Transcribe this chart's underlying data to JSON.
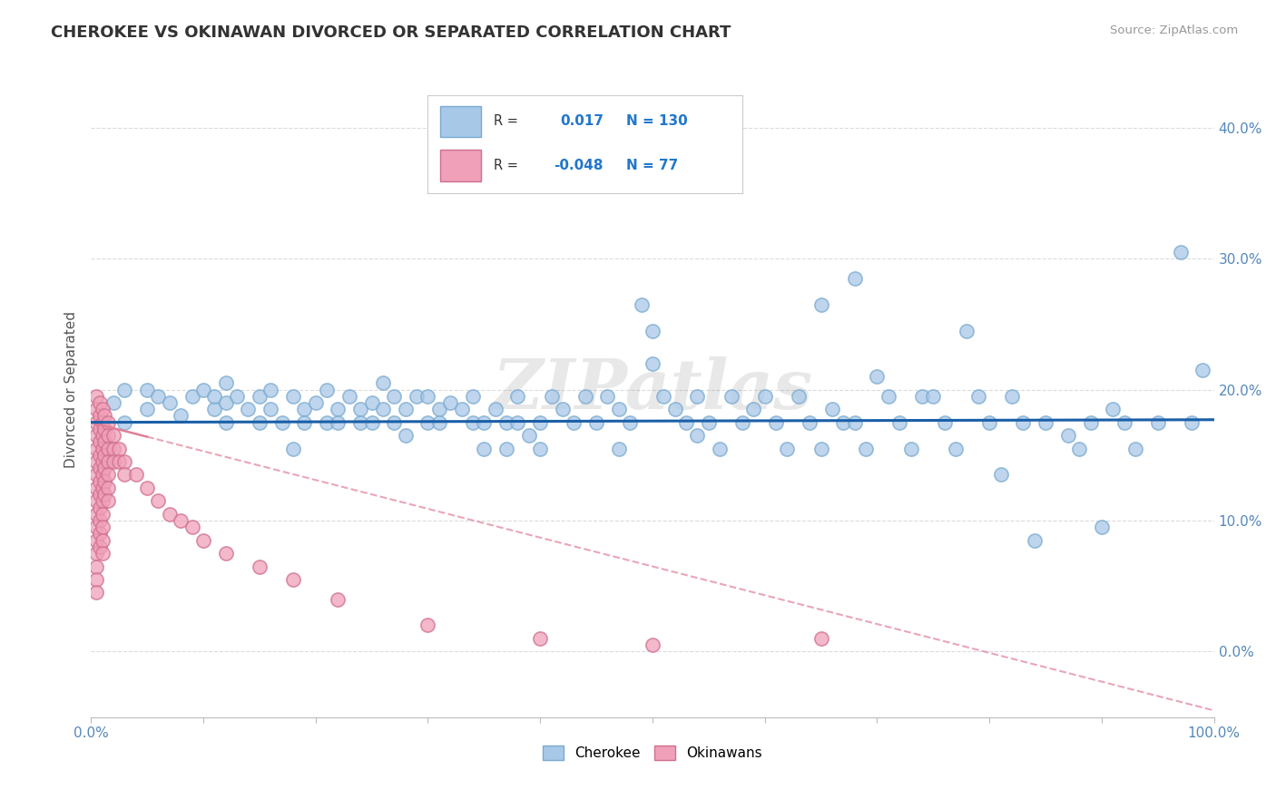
{
  "title": "CHEROKEE VS OKINAWAN DIVORCED OR SEPARATED CORRELATION CHART",
  "source": "Source: ZipAtlas.com",
  "ylabel": "Divorced or Separated",
  "xlim": [
    0.0,
    1.0
  ],
  "ylim": [
    -0.05,
    0.45
  ],
  "xtick_positions": [
    0.0,
    0.1,
    0.2,
    0.3,
    0.4,
    0.5,
    0.6,
    0.7,
    0.8,
    0.9,
    1.0
  ],
  "xtick_labels_shown": [
    "0.0%",
    "",
    "",
    "",
    "",
    "",
    "",
    "",
    "",
    "",
    "100.0%"
  ],
  "ytick_values": [
    0.0,
    0.1,
    0.2,
    0.3,
    0.4
  ],
  "ytick_labels": [
    "0.0%",
    "10.0%",
    "20.0%",
    "30.0%",
    "40.0%"
  ],
  "cherokee_color": "#a8c8e8",
  "cherokee_edge_color": "#7aaad0",
  "okinawan_color": "#f0a0b8",
  "okinawan_edge_color": "#d07090",
  "cherokee_R": 0.017,
  "cherokee_N": 130,
  "okinawan_R": -0.048,
  "okinawan_N": 77,
  "cherokee_line_color": "#1a5fa8",
  "okinawan_line_color": "#e08098",
  "watermark": "ZIPatlas",
  "background_color": "#ffffff",
  "grid_color": "#cccccc",
  "title_color": "#333333",
  "axis_label_color": "#5588bb",
  "ylabel_color": "#555555",
  "legend_R_label_color": "#333333",
  "legend_value_color": "#2277cc",
  "cherokee_line_y_intercept": 0.175,
  "cherokee_line_slope": 0.002,
  "okinawan_line_y_intercept": 0.175,
  "okinawan_line_slope": -0.22,
  "cherokee_points": [
    [
      0.02,
      0.19
    ],
    [
      0.03,
      0.2
    ],
    [
      0.03,
      0.175
    ],
    [
      0.05,
      0.2
    ],
    [
      0.05,
      0.185
    ],
    [
      0.06,
      0.195
    ],
    [
      0.07,
      0.19
    ],
    [
      0.08,
      0.18
    ],
    [
      0.09,
      0.195
    ],
    [
      0.1,
      0.2
    ],
    [
      0.11,
      0.185
    ],
    [
      0.11,
      0.195
    ],
    [
      0.12,
      0.19
    ],
    [
      0.12,
      0.175
    ],
    [
      0.12,
      0.205
    ],
    [
      0.13,
      0.195
    ],
    [
      0.14,
      0.185
    ],
    [
      0.15,
      0.195
    ],
    [
      0.15,
      0.175
    ],
    [
      0.16,
      0.2
    ],
    [
      0.16,
      0.185
    ],
    [
      0.17,
      0.175
    ],
    [
      0.18,
      0.195
    ],
    [
      0.18,
      0.155
    ],
    [
      0.19,
      0.185
    ],
    [
      0.19,
      0.175
    ],
    [
      0.2,
      0.19
    ],
    [
      0.21,
      0.175
    ],
    [
      0.21,
      0.2
    ],
    [
      0.22,
      0.185
    ],
    [
      0.22,
      0.175
    ],
    [
      0.23,
      0.195
    ],
    [
      0.24,
      0.185
    ],
    [
      0.24,
      0.175
    ],
    [
      0.25,
      0.19
    ],
    [
      0.25,
      0.175
    ],
    [
      0.26,
      0.205
    ],
    [
      0.26,
      0.185
    ],
    [
      0.27,
      0.175
    ],
    [
      0.27,
      0.195
    ],
    [
      0.28,
      0.185
    ],
    [
      0.28,
      0.165
    ],
    [
      0.29,
      0.195
    ],
    [
      0.3,
      0.175
    ],
    [
      0.3,
      0.195
    ],
    [
      0.31,
      0.185
    ],
    [
      0.31,
      0.175
    ],
    [
      0.32,
      0.19
    ],
    [
      0.33,
      0.185
    ],
    [
      0.34,
      0.175
    ],
    [
      0.34,
      0.195
    ],
    [
      0.35,
      0.175
    ],
    [
      0.35,
      0.155
    ],
    [
      0.36,
      0.185
    ],
    [
      0.37,
      0.175
    ],
    [
      0.37,
      0.155
    ],
    [
      0.38,
      0.175
    ],
    [
      0.38,
      0.195
    ],
    [
      0.39,
      0.165
    ],
    [
      0.4,
      0.175
    ],
    [
      0.4,
      0.155
    ],
    [
      0.41,
      0.195
    ],
    [
      0.42,
      0.185
    ],
    [
      0.43,
      0.175
    ],
    [
      0.44,
      0.195
    ],
    [
      0.45,
      0.175
    ],
    [
      0.46,
      0.195
    ],
    [
      0.47,
      0.155
    ],
    [
      0.47,
      0.185
    ],
    [
      0.48,
      0.175
    ],
    [
      0.49,
      0.265
    ],
    [
      0.5,
      0.245
    ],
    [
      0.5,
      0.22
    ],
    [
      0.51,
      0.195
    ],
    [
      0.52,
      0.185
    ],
    [
      0.53,
      0.175
    ],
    [
      0.54,
      0.195
    ],
    [
      0.54,
      0.165
    ],
    [
      0.55,
      0.175
    ],
    [
      0.56,
      0.155
    ],
    [
      0.57,
      0.195
    ],
    [
      0.58,
      0.175
    ],
    [
      0.59,
      0.185
    ],
    [
      0.6,
      0.195
    ],
    [
      0.61,
      0.175
    ],
    [
      0.62,
      0.155
    ],
    [
      0.63,
      0.195
    ],
    [
      0.64,
      0.175
    ],
    [
      0.65,
      0.265
    ],
    [
      0.65,
      0.155
    ],
    [
      0.66,
      0.185
    ],
    [
      0.67,
      0.175
    ],
    [
      0.68,
      0.285
    ],
    [
      0.68,
      0.175
    ],
    [
      0.69,
      0.155
    ],
    [
      0.7,
      0.21
    ],
    [
      0.71,
      0.195
    ],
    [
      0.72,
      0.175
    ],
    [
      0.73,
      0.155
    ],
    [
      0.74,
      0.195
    ],
    [
      0.75,
      0.195
    ],
    [
      0.76,
      0.175
    ],
    [
      0.77,
      0.155
    ],
    [
      0.78,
      0.245
    ],
    [
      0.79,
      0.195
    ],
    [
      0.8,
      0.175
    ],
    [
      0.81,
      0.135
    ],
    [
      0.82,
      0.195
    ],
    [
      0.83,
      0.175
    ],
    [
      0.84,
      0.085
    ],
    [
      0.85,
      0.175
    ],
    [
      0.87,
      0.165
    ],
    [
      0.88,
      0.155
    ],
    [
      0.89,
      0.175
    ],
    [
      0.9,
      0.095
    ],
    [
      0.91,
      0.185
    ],
    [
      0.92,
      0.175
    ],
    [
      0.93,
      0.155
    ],
    [
      0.95,
      0.175
    ],
    [
      0.97,
      0.305
    ],
    [
      0.98,
      0.175
    ],
    [
      0.99,
      0.215
    ]
  ],
  "okinawan_points": [
    [
      0.005,
      0.195
    ],
    [
      0.005,
      0.185
    ],
    [
      0.005,
      0.175
    ],
    [
      0.005,
      0.165
    ],
    [
      0.005,
      0.155
    ],
    [
      0.005,
      0.145
    ],
    [
      0.005,
      0.135
    ],
    [
      0.005,
      0.125
    ],
    [
      0.005,
      0.115
    ],
    [
      0.005,
      0.105
    ],
    [
      0.005,
      0.095
    ],
    [
      0.005,
      0.085
    ],
    [
      0.005,
      0.075
    ],
    [
      0.005,
      0.065
    ],
    [
      0.005,
      0.055
    ],
    [
      0.005,
      0.045
    ],
    [
      0.008,
      0.19
    ],
    [
      0.008,
      0.18
    ],
    [
      0.008,
      0.17
    ],
    [
      0.008,
      0.16
    ],
    [
      0.008,
      0.15
    ],
    [
      0.008,
      0.14
    ],
    [
      0.008,
      0.13
    ],
    [
      0.008,
      0.12
    ],
    [
      0.008,
      0.11
    ],
    [
      0.008,
      0.1
    ],
    [
      0.008,
      0.09
    ],
    [
      0.008,
      0.08
    ],
    [
      0.01,
      0.185
    ],
    [
      0.01,
      0.175
    ],
    [
      0.01,
      0.165
    ],
    [
      0.01,
      0.155
    ],
    [
      0.01,
      0.145
    ],
    [
      0.01,
      0.135
    ],
    [
      0.01,
      0.125
    ],
    [
      0.01,
      0.115
    ],
    [
      0.01,
      0.105
    ],
    [
      0.01,
      0.095
    ],
    [
      0.01,
      0.085
    ],
    [
      0.01,
      0.075
    ],
    [
      0.012,
      0.18
    ],
    [
      0.012,
      0.17
    ],
    [
      0.012,
      0.16
    ],
    [
      0.012,
      0.15
    ],
    [
      0.012,
      0.14
    ],
    [
      0.012,
      0.13
    ],
    [
      0.012,
      0.12
    ],
    [
      0.015,
      0.175
    ],
    [
      0.015,
      0.165
    ],
    [
      0.015,
      0.155
    ],
    [
      0.015,
      0.145
    ],
    [
      0.015,
      0.135
    ],
    [
      0.015,
      0.125
    ],
    [
      0.015,
      0.115
    ],
    [
      0.02,
      0.165
    ],
    [
      0.02,
      0.155
    ],
    [
      0.02,
      0.145
    ],
    [
      0.025,
      0.155
    ],
    [
      0.025,
      0.145
    ],
    [
      0.03,
      0.145
    ],
    [
      0.03,
      0.135
    ],
    [
      0.04,
      0.135
    ],
    [
      0.05,
      0.125
    ],
    [
      0.06,
      0.115
    ],
    [
      0.07,
      0.105
    ],
    [
      0.08,
      0.1
    ],
    [
      0.09,
      0.095
    ],
    [
      0.1,
      0.085
    ],
    [
      0.12,
      0.075
    ],
    [
      0.15,
      0.065
    ],
    [
      0.18,
      0.055
    ],
    [
      0.22,
      0.04
    ],
    [
      0.3,
      0.02
    ],
    [
      0.4,
      0.01
    ],
    [
      0.5,
      0.005
    ],
    [
      0.65,
      0.01
    ]
  ]
}
